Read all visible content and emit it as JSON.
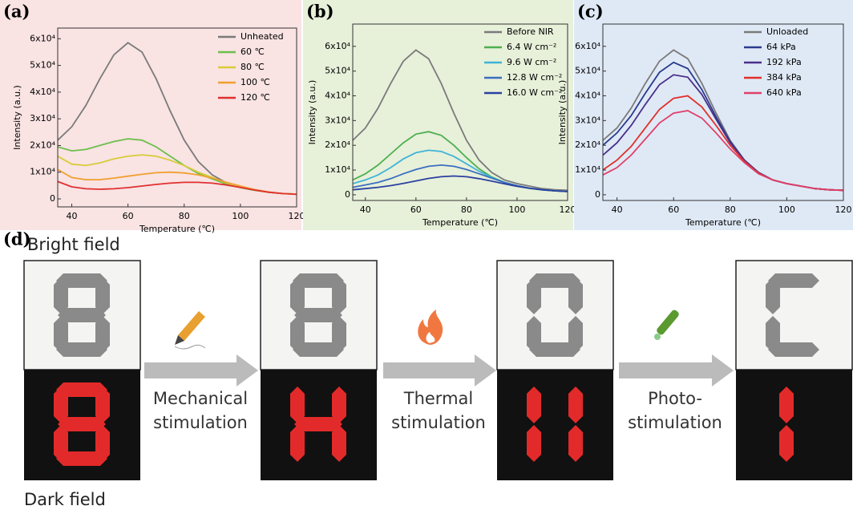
{
  "chart_data": [
    {
      "type": "line",
      "title": "(a)",
      "background": "#f9e3e3",
      "x_label": "Temperature (℃)",
      "y_label": "Intensity (a.u.)",
      "x": [
        35,
        40,
        45,
        50,
        55,
        60,
        65,
        70,
        75,
        80,
        85,
        90,
        95,
        100,
        105,
        110,
        115,
        120
      ],
      "xlim": [
        35,
        120
      ],
      "xticks": [
        40,
        60,
        80,
        100,
        120
      ],
      "ylim": [
        -3000,
        64000
      ],
      "yticks": [
        0,
        {
          "value": 10000,
          "label": "1x10⁴"
        },
        {
          "value": 20000,
          "label": "2x10⁴"
        },
        {
          "value": 30000,
          "label": "3x10⁴"
        },
        {
          "value": 40000,
          "label": "4x10⁴"
        },
        {
          "value": 50000,
          "label": "5x10⁴"
        },
        {
          "value": 60000,
          "label": "6x10⁴"
        }
      ],
      "series": [
        {
          "name": "Unheated",
          "color": "#7a7a7a",
          "values": [
            22000,
            27000,
            35000,
            45000,
            54000,
            58500,
            55000,
            45000,
            33000,
            22000,
            14000,
            9000,
            6000,
            4500,
            3500,
            2500,
            2000,
            1800
          ]
        },
        {
          "name": "60 ℃",
          "color": "#6cbf4a",
          "values": [
            19500,
            18000,
            18500,
            20000,
            21500,
            22500,
            22000,
            19500,
            16000,
            12500,
            9500,
            7500,
            5500,
            4200,
            3200,
            2500,
            2000,
            1800
          ]
        },
        {
          "name": "80 ℃",
          "color": "#d8cc3a",
          "values": [
            16000,
            13000,
            12500,
            13500,
            15000,
            16000,
            16500,
            16000,
            14500,
            12500,
            10000,
            8000,
            6000,
            4500,
            3300,
            2500,
            2000,
            1800
          ]
        },
        {
          "name": "100 ℃",
          "color": "#f0a030",
          "values": [
            11000,
            8000,
            7200,
            7200,
            7800,
            8500,
            9200,
            9800,
            10000,
            9700,
            9000,
            7800,
            6200,
            4800,
            3500,
            2600,
            2000,
            1800
          ]
        },
        {
          "name": "120 ℃",
          "color": "#e03030",
          "values": [
            6500,
            4500,
            3800,
            3600,
            3800,
            4200,
            4800,
            5400,
            5900,
            6200,
            6200,
            5900,
            5200,
            4300,
            3300,
            2500,
            2000,
            1700
          ]
        }
      ]
    },
    {
      "type": "line",
      "title": "(b)",
      "background": "#e7f0d9",
      "x_label": "Temperature (℃)",
      "y_label": "Intensity (a.u.)",
      "x": [
        35,
        40,
        45,
        50,
        55,
        60,
        65,
        70,
        75,
        80,
        85,
        90,
        95,
        100,
        105,
        110,
        115,
        120
      ],
      "xlim": [
        35,
        120
      ],
      "xticks": [
        40,
        60,
        80,
        100,
        120
      ],
      "ylim": [
        -2300,
        69000
      ],
      "yticks": [
        0,
        {
          "value": 10000,
          "label": "1x10⁴"
        },
        {
          "value": 20000,
          "label": "2x10⁴"
        },
        {
          "value": 30000,
          "label": "3x10⁴"
        },
        {
          "value": 40000,
          "label": "4x10⁴"
        },
        {
          "value": 50000,
          "label": "5x10⁴"
        },
        {
          "value": 60000,
          "label": "6x10⁴"
        }
      ],
      "series": [
        {
          "name": "Before NIR",
          "color": "#7a7a7a",
          "values": [
            22000,
            27000,
            35000,
            45000,
            54000,
            58500,
            55000,
            45000,
            33000,
            22000,
            14000,
            9000,
            6000,
            4500,
            3500,
            2500,
            2000,
            1800
          ]
        },
        {
          "name": "6.4 W cm⁻²",
          "color": "#4caf50",
          "values": [
            6000,
            8500,
            12000,
            16500,
            21000,
            24500,
            25500,
            24000,
            20000,
            15000,
            10500,
            7200,
            5000,
            3500,
            2600,
            2000,
            1600,
            1300
          ]
        },
        {
          "name": "9.6 W cm⁻²",
          "color": "#3fb4d8",
          "values": [
            4500,
            6000,
            8000,
            11000,
            14500,
            17000,
            18000,
            17500,
            15500,
            12500,
            9500,
            7000,
            5000,
            3600,
            2600,
            2000,
            1600,
            1300
          ]
        },
        {
          "name": "12.8 W cm⁻²",
          "color": "#3a6fc0",
          "values": [
            3000,
            4000,
            5000,
            6500,
            8500,
            10200,
            11500,
            12000,
            11500,
            10200,
            8500,
            6700,
            5000,
            3700,
            2700,
            2000,
            1600,
            1300
          ]
        },
        {
          "name": "16.0 W cm⁻²",
          "color": "#2a40a0",
          "values": [
            2000,
            2500,
            3000,
            3700,
            4600,
            5600,
            6600,
            7300,
            7600,
            7300,
            6500,
            5500,
            4400,
            3400,
            2600,
            2000,
            1600,
            1300
          ]
        }
      ]
    },
    {
      "type": "line",
      "title": "(c)",
      "background": "#dfe9f6",
      "x_label": "Temperature (℃)",
      "y_label": "Intensity (a.u.)",
      "x": [
        35,
        40,
        45,
        50,
        55,
        60,
        65,
        70,
        75,
        80,
        85,
        90,
        95,
        100,
        105,
        110,
        115,
        120
      ],
      "xlim": [
        35,
        120
      ],
      "xticks": [
        40,
        60,
        80,
        100,
        120
      ],
      "ylim": [
        -2300,
        69000
      ],
      "yticks": [
        0,
        {
          "value": 10000,
          "label": "1x10⁴"
        },
        {
          "value": 20000,
          "label": "2x10⁴"
        },
        {
          "value": 30000,
          "label": "3x10⁴"
        },
        {
          "value": 40000,
          "label": "4x10⁴"
        },
        {
          "value": 50000,
          "label": "5x10⁴"
        },
        {
          "value": 60000,
          "label": "6x10⁴"
        }
      ],
      "series": [
        {
          "name": "Unloaded",
          "color": "#7a7a7a",
          "values": [
            22000,
            27000,
            35000,
            45000,
            54000,
            58500,
            55000,
            45000,
            33000,
            22000,
            14000,
            9000,
            6000,
            4500,
            3500,
            2500,
            2000,
            1800
          ]
        },
        {
          "name": "64 kPa",
          "color": "#2a3a8c",
          "values": [
            20000,
            25000,
            32000,
            41000,
            49500,
            53500,
            51000,
            42500,
            31500,
            21500,
            14000,
            9000,
            6000,
            4500,
            3500,
            2500,
            2000,
            1800
          ]
        },
        {
          "name": "192 kPa",
          "color": "#4a2f8a",
          "values": [
            16000,
            21000,
            28000,
            36500,
            44500,
            48500,
            47500,
            40500,
            30500,
            21000,
            14000,
            9000,
            6000,
            4500,
            3500,
            2500,
            2000,
            1800
          ]
        },
        {
          "name": "384 kPa",
          "color": "#e0302a",
          "values": [
            10000,
            14000,
            19500,
            27000,
            34500,
            39000,
            40000,
            35500,
            28000,
            20000,
            13500,
            8800,
            6000,
            4500,
            3500,
            2500,
            2000,
            1800
          ]
        },
        {
          "name": "640 kPa",
          "color": "#e0406a",
          "values": [
            8000,
            11000,
            16000,
            22500,
            29000,
            33000,
            34000,
            31000,
            25000,
            18500,
            13000,
            8500,
            6000,
            4500,
            3500,
            2500,
            2000,
            1800
          ]
        }
      ]
    }
  ],
  "diagram": {
    "label": "(d)",
    "top_label": "Bright field",
    "bottom_label": "Dark field",
    "steps": [
      [
        "Mechanical",
        "stimulation"
      ],
      [
        "Thermal",
        "stimulation"
      ],
      [
        "Photo-",
        "stimulation"
      ]
    ]
  }
}
